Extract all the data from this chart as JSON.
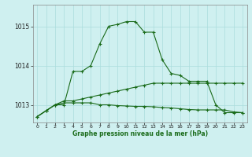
{
  "title": "Graphe pression niveau de la mer (hPa)",
  "bg_color": "#cff0f0",
  "grid_color": "#aadddd",
  "line_color": "#1a6b1a",
  "xlim": [
    -0.5,
    23.5
  ],
  "ylim": [
    1012.55,
    1015.55
  ],
  "yticks": [
    1013,
    1014,
    1015
  ],
  "xticks": [
    0,
    1,
    2,
    3,
    4,
    5,
    6,
    7,
    8,
    9,
    10,
    11,
    12,
    13,
    14,
    15,
    16,
    17,
    18,
    19,
    20,
    21,
    22,
    23
  ],
  "series1": [
    1012.7,
    1012.85,
    1013.0,
    1013.0,
    1013.85,
    1013.85,
    1014.0,
    1014.55,
    1015.0,
    1015.05,
    1015.12,
    1015.12,
    1014.85,
    1014.85,
    1014.15,
    1013.8,
    1013.75,
    1013.6,
    1013.6,
    1013.6,
    1013.0,
    1012.8,
    1012.8,
    1012.8
  ],
  "series2_upper": [
    1012.7,
    1012.85,
    1013.0,
    1013.1,
    1013.1,
    1013.15,
    1013.2,
    1013.25,
    1013.3,
    1013.35,
    1013.4,
    1013.45,
    1013.5,
    1013.55,
    1013.55,
    1013.55,
    1013.55,
    1013.55,
    1013.55,
    1013.55,
    1013.55,
    1013.55,
    1013.55,
    1013.55
  ],
  "series2_lower": [
    1012.7,
    1012.85,
    1013.0,
    1013.05,
    1013.05,
    1013.05,
    1013.05,
    1013.0,
    1013.0,
    1012.98,
    1012.97,
    1012.96,
    1012.96,
    1012.95,
    1012.93,
    1012.92,
    1012.9,
    1012.88,
    1012.87,
    1012.87,
    1012.87,
    1012.87,
    1012.82,
    1012.8
  ],
  "figsize": [
    3.2,
    2.0
  ],
  "dpi": 100
}
